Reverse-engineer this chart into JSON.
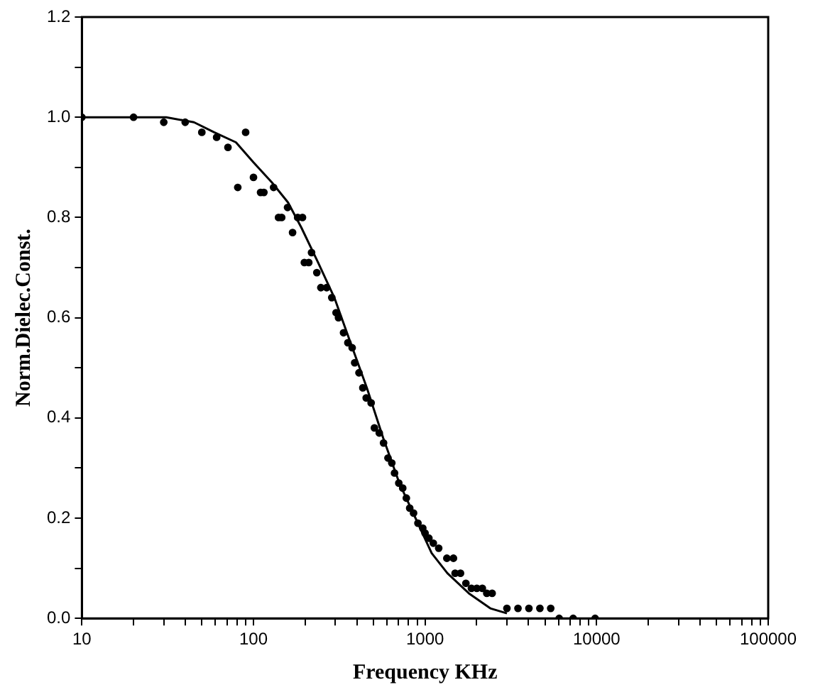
{
  "chart_data": {
    "type": "scatter",
    "xlabel": "Frequency KHz",
    "ylabel": "Norm.Dielec.Const.",
    "log": "x",
    "grid": false,
    "legend": false,
    "marker": "circle",
    "xlim": [
      10,
      100000
    ],
    "ylim": [
      0,
      1.2
    ],
    "xticks": [
      10,
      {
        "value": 20,
        "label": null
      },
      {
        "value": 30,
        "label": null
      },
      {
        "value": 40,
        "label": null
      },
      {
        "value": 50,
        "label": null
      },
      {
        "value": 60,
        "label": null
      },
      {
        "value": 70,
        "label": null
      },
      {
        "value": 80,
        "label": null
      },
      {
        "value": 90,
        "label": null
      },
      100,
      {
        "value": 200,
        "label": null
      },
      {
        "value": 300,
        "label": null
      },
      {
        "value": 400,
        "label": null
      },
      {
        "value": 500,
        "label": null
      },
      {
        "value": 600,
        "label": null
      },
      {
        "value": 700,
        "label": null
      },
      {
        "value": 800,
        "label": null
      },
      {
        "value": 900,
        "label": null
      },
      1000,
      {
        "value": 2000,
        "label": null
      },
      {
        "value": 3000,
        "label": null
      },
      {
        "value": 4000,
        "label": null
      },
      {
        "value": 5000,
        "label": null
      },
      {
        "value": 6000,
        "label": null
      },
      {
        "value": 7000,
        "label": null
      },
      {
        "value": 8000,
        "label": null
      },
      {
        "value": 9000,
        "label": null
      },
      10000,
      {
        "value": 20000,
        "label": null
      },
      {
        "value": 30000,
        "label": null
      },
      {
        "value": 40000,
        "label": null
      },
      {
        "value": 50000,
        "label": null
      },
      {
        "value": 60000,
        "label": null
      },
      {
        "value": 70000,
        "label": null
      },
      {
        "value": 80000,
        "label": null
      },
      {
        "value": 90000,
        "label": null
      },
      100000
    ],
    "yticks": [
      {
        "value": 0,
        "label": "0.0"
      },
      {
        "value": 0.1,
        "label": null
      },
      0.2,
      {
        "value": 0.3,
        "label": null
      },
      0.4,
      {
        "value": 0.5,
        "label": null
      },
      0.6,
      {
        "value": 0.7,
        "label": null
      },
      0.8,
      {
        "value": 0.9,
        "label": null
      },
      {
        "value": 1,
        "label": "1.0"
      },
      {
        "value": 1.1,
        "label": null
      },
      1.2
    ],
    "series": [
      {
        "color": "#000000",
        "x": [
          10,
          20,
          30,
          40,
          50,
          61,
          71,
          81,
          90,
          100,
          110,
          115,
          131,
          140,
          146,
          158,
          169,
          181,
          193,
          198,
          210,
          218,
          234,
          247,
          267,
          286,
          303,
          313,
          335,
          355,
          376,
          389,
          412,
          434,
          454,
          485,
          507,
          541,
          573,
          608,
          640,
          664,
          703,
          741,
          778,
          814,
          857,
          909,
          970,
          1000,
          1053,
          1117,
          1201,
          1340,
          1464,
          1497,
          1609,
          1730,
          1863,
          2004,
          2157,
          2290,
          2460,
          3000,
          3480,
          4030,
          4670,
          5400,
          6050,
          7300,
          9800
        ],
        "values": [
          1.0,
          1.0,
          0.99,
          0.99,
          0.97,
          0.96,
          0.94,
          0.86,
          0.97,
          0.88,
          0.85,
          0.85,
          0.86,
          0.8,
          0.8,
          0.82,
          0.77,
          0.8,
          0.8,
          0.71,
          0.71,
          0.73,
          0.69,
          0.66,
          0.66,
          0.64,
          0.61,
          0.6,
          0.57,
          0.55,
          0.54,
          0.51,
          0.49,
          0.46,
          0.44,
          0.43,
          0.38,
          0.37,
          0.35,
          0.32,
          0.31,
          0.29,
          0.27,
          0.26,
          0.24,
          0.22,
          0.21,
          0.19,
          0.18,
          0.17,
          0.16,
          0.15,
          0.14,
          0.12,
          0.12,
          0.09,
          0.09,
          0.07,
          0.06,
          0.06,
          0.06,
          0.05,
          0.05,
          0.02,
          0.02,
          0.02,
          0.02,
          0.02,
          0.0,
          0.0,
          0.0
        ]
      },
      {
        "type": "line",
        "color": "#000000",
        "marker": "none",
        "x": [
          10,
          18,
          31,
          45,
          59,
          79,
          100,
          128,
          159,
          190,
          238,
          296,
          368,
          458,
          570,
          708,
          880,
          1093,
          1350,
          1800,
          2400,
          3000
        ],
        "values": [
          1.0,
          1.0,
          1.0,
          0.99,
          0.97,
          0.95,
          0.91,
          0.87,
          0.83,
          0.78,
          0.71,
          0.64,
          0.55,
          0.46,
          0.36,
          0.27,
          0.2,
          0.13,
          0.09,
          0.05,
          0.02,
          0.01
        ]
      }
    ]
  }
}
